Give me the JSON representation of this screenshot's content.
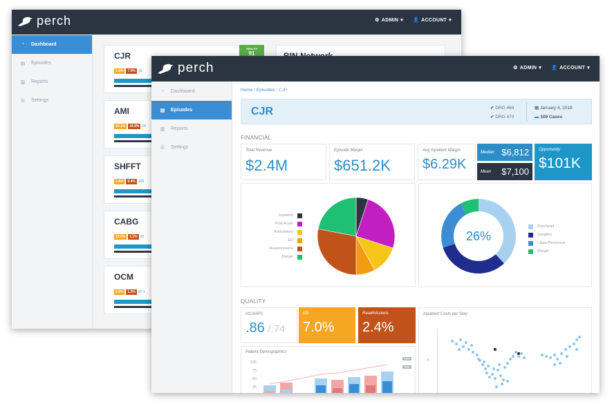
{
  "brand": {
    "name": "perch"
  },
  "nav": {
    "admin": "ADMIN",
    "account": "ACCOUNT"
  },
  "sidebar": {
    "items": [
      {
        "label": "Dashboard",
        "icon": "dashboard-icon"
      },
      {
        "label": "Episodes",
        "icon": "clipboard-icon"
      },
      {
        "label": "Reports",
        "icon": "bar-chart-icon"
      },
      {
        "label": "Settings",
        "icon": "list-icon"
      }
    ]
  },
  "back_window": {
    "active_item": "Dashboard",
    "health_label": "HEALTH",
    "health_value": "91",
    "network_title": "BIN Network",
    "episodes": [
      {
        "name": "CJR",
        "b1": "2.4%",
        "b2": "7.0%",
        "tail": "10"
      },
      {
        "name": "AMI",
        "b1": "12.1%",
        "b2": "19.9%",
        "tail": "10"
      },
      {
        "name": "SHFFT",
        "b1": "2.8%",
        "b2": "9.4%",
        "tail": "103"
      },
      {
        "name": "CABG",
        "b1": "13.0%",
        "b2": "1.1%",
        "tail": "10"
      },
      {
        "name": "OCM",
        "b1": "4.4%",
        "b2": "1.2%",
        "tail": "97 1"
      }
    ]
  },
  "front_window": {
    "active_item": "Episodes",
    "breadcrumb": [
      "Home",
      "Episodes",
      "CJR"
    ],
    "episode_title": "CJR",
    "drgs": [
      "DRG 469",
      "DRG 470"
    ],
    "date": "January 4, 2018",
    "cases": "109 Cases",
    "financial_title": "FINANCIAL",
    "financial": {
      "total_revenue_label": "Total Revenue",
      "total_revenue": "$2.4M",
      "episode_margin_label": "Episode Margin",
      "episode_margin": "$651.2K",
      "avg_inpatient_label": "Avg Inpatient Margin",
      "avg_inpatient": "$6.29K",
      "median_label": "Median",
      "median": "$6,812",
      "mean_label": "Mean",
      "mean": "$7,100",
      "opportunity_label": "Opportunity",
      "opportunity": "$101K"
    },
    "pie_legend": [
      {
        "label": "Inpatient",
        "color": "#2b3542"
      },
      {
        "label": "Post Acute",
        "color": "#c21fc2"
      },
      {
        "label": "Ambulatory",
        "color": "#f5c518"
      },
      {
        "label": "ED",
        "color": "#f39c12"
      },
      {
        "label": "Readmissions",
        "color": "#c0521a"
      },
      {
        "label": "Margin",
        "color": "#1fc073"
      }
    ],
    "pie_fractions": [
      0.05,
      0.25,
      0.12,
      0.08,
      0.28,
      0.22
    ],
    "donut_center": "26%",
    "donut_legend": [
      {
        "label": "Overhead",
        "color": "#a8d1f0"
      },
      {
        "label": "Supplies",
        "color": "#1f2d8c"
      },
      {
        "label": "Labor/Personnel",
        "color": "#3b8ed4"
      },
      {
        "label": "Margin",
        "color": "#1fc073"
      }
    ],
    "donut_fractions": [
      0.38,
      0.32,
      0.22,
      0.08
    ],
    "quality_title": "QUALITY",
    "quality": {
      "hcahps_label": "HCAHPS",
      "hcahps_value": ".86",
      "hcahps_target": "/.74",
      "ed_label": "ED",
      "ed_value": "7.0%",
      "readm_label": "Readmissions",
      "readm_value": "2.4%",
      "demographics_label": "Patient Demographics",
      "y_ticks": [
        "100",
        "75",
        "50",
        "25"
      ],
      "end_labels": [
        "TBA",
        "TBA"
      ],
      "scatter_label": "Inpatient Costs per Stay",
      "scatter_tick": "5"
    }
  }
}
